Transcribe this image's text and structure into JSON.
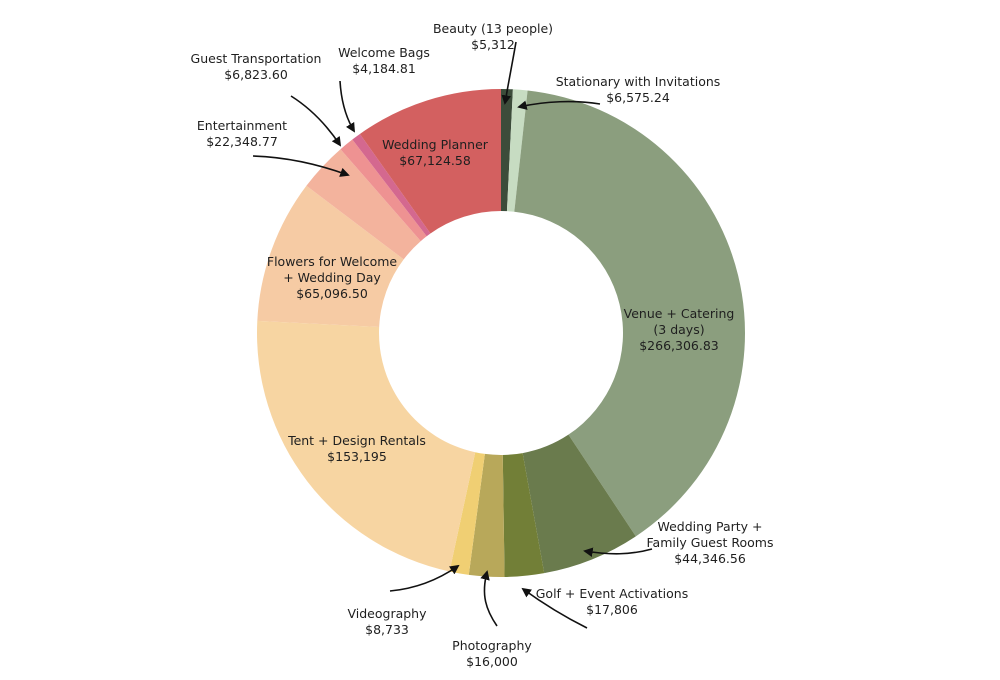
{
  "chart_data": {
    "type": "pie",
    "style": "donut",
    "start_angle": "12 o'clock",
    "direction": "clockwise",
    "title": "",
    "legend": "none",
    "slices": [
      {
        "label": "Beauty (13 people)",
        "value_text": "$5,312",
        "value": 5312,
        "color": "#3c4c3a"
      },
      {
        "label": "Stationary with Invitations",
        "value_text": "$6,575.24",
        "value": 6575.24,
        "color": "#c7dcc2"
      },
      {
        "label": "Venue + Catering\n(3 days)",
        "value_text": "$266,306.83",
        "value": 266306.83,
        "color": "#8b9e7e"
      },
      {
        "label": "Wedding Party +\nFamily Guest Rooms",
        "value_text": "$44,346.56",
        "value": 44346.56,
        "color": "#6a7b4d"
      },
      {
        "label": "Golf + Event Activations",
        "value_text": "$17,806",
        "value": 17806,
        "color": "#727f37"
      },
      {
        "label": "Photography",
        "value_text": "$16,000",
        "value": 16000,
        "color": "#b8a85a"
      },
      {
        "label": "Videography",
        "value_text": "$8,733",
        "value": 8733,
        "color": "#f0cf73"
      },
      {
        "label": "Tent + Design Rentals",
        "value_text": "$153,195",
        "value": 153195,
        "color": "#f7d5a2"
      },
      {
        "label": "Flowers for Welcome\n+ Wedding Day",
        "value_text": "$65,096.50",
        "value": 65096.5,
        "color": "#f6cba4"
      },
      {
        "label": "Entertainment",
        "value_text": "$22,348.77",
        "value": 22348.77,
        "color": "#f3b39d"
      },
      {
        "label": "Guest Transportation",
        "value_text": "$6,823.60",
        "value": 6823.6,
        "color": "#ee9292"
      },
      {
        "label": "Welcome Bags",
        "value_text": "$4,184.81",
        "value": 4184.81,
        "color": "#d4688f"
      },
      {
        "label": "Wedding Planner",
        "value_text": "$67,124.58",
        "value": 67124.58,
        "color": "#d36060"
      }
    ]
  }
}
